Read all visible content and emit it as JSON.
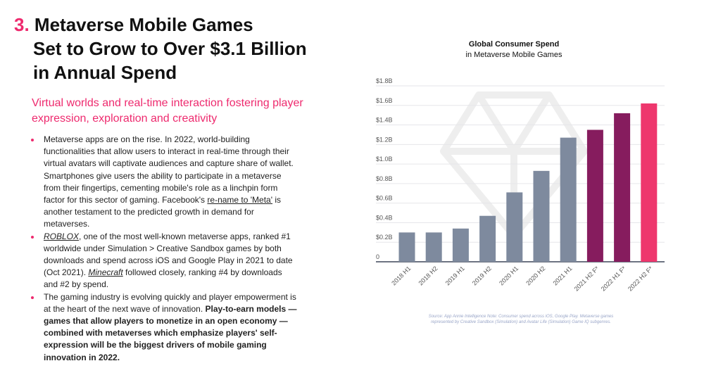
{
  "header": {
    "number": "3.",
    "title_lines": [
      "Metaverse Mobile Games",
      "Set to Grow to Over $3.1 Billion",
      "in Annual Spend"
    ]
  },
  "subtitle": "Virtual worlds and real-time interaction fostering player expression, exploration and creativity",
  "bullets": [
    {
      "text": "Metaverse apps are on the rise. In 2022, world-building functionalities that allow users to interact in real-time through their virtual avatars will captivate audiences and capture share of wallet. Smartphones give users the ability to participate in a metaverse from their fingertips, cementing mobile's role as a linchpin form factor for this sector of gaming. Facebook's ",
      "link": "re-name to 'Meta'",
      "after": " is another testament to the predicted growth in demand for metaverses."
    },
    {
      "link": "ROBLOX",
      "text": ", one of the most well-known metaverse apps, ranked #1 worldwide under Simulation > Creative Sandbox games by both downloads and spend across iOS and Google Play in 2021 to date (Oct 2021). ",
      "link2": "Minecraft",
      "after": " followed closely, ranking #4 by downloads and #2 by spend."
    },
    {
      "text": "The gaming industry is evolving quickly and player empowerment is at the heart of the next wave of innovation. ",
      "bold": "Play-to-earn models — games that allow players to monetize in an open economy — combined with metaverses which emphasize players' self-expression will be the biggest drivers of mobile gaming innovation in 2022."
    }
  ],
  "chart_data": {
    "type": "bar",
    "title": "Global Consumer Spend",
    "subtitle": "in Metaverse Mobile Games",
    "categories": [
      "2018 H1",
      "2018 H2",
      "2019 H1",
      "2019 H2",
      "2020 H1",
      "2020 H2",
      "2021 H1",
      "2021 H2 F*",
      "2022 H1 F*",
      "2022 H2 F*"
    ],
    "values": [
      0.3,
      0.3,
      0.34,
      0.47,
      0.71,
      0.93,
      1.27,
      1.35,
      1.52,
      1.62
    ],
    "colors": [
      "#7e8a9e",
      "#7e8a9e",
      "#7e8a9e",
      "#7e8a9e",
      "#7e8a9e",
      "#7e8a9e",
      "#7e8a9e",
      "#861c5e",
      "#861c5e",
      "#ee376d"
    ],
    "yticks": [
      0,
      0.2,
      0.4,
      0.6,
      0.8,
      1.0,
      1.2,
      1.4,
      1.6,
      1.8
    ],
    "ytick_labels": [
      "0",
      "$0.2B",
      "$0.4B",
      "$0.6B",
      "$0.8B",
      "$1.0B",
      "$1.2B",
      "$1.4B",
      "$1.6B",
      "$1.8B"
    ],
    "ylim": [
      0,
      1.8
    ],
    "ylabel": "",
    "xlabel": "",
    "grid": true,
    "source": "Source: App Annie Intelligence Note: Consumer spend across iOS, Google Play. Metaverse games represented by Creative Sandbox (Simulation) and Avatar Life (Simulation) Game IQ subgenres."
  }
}
